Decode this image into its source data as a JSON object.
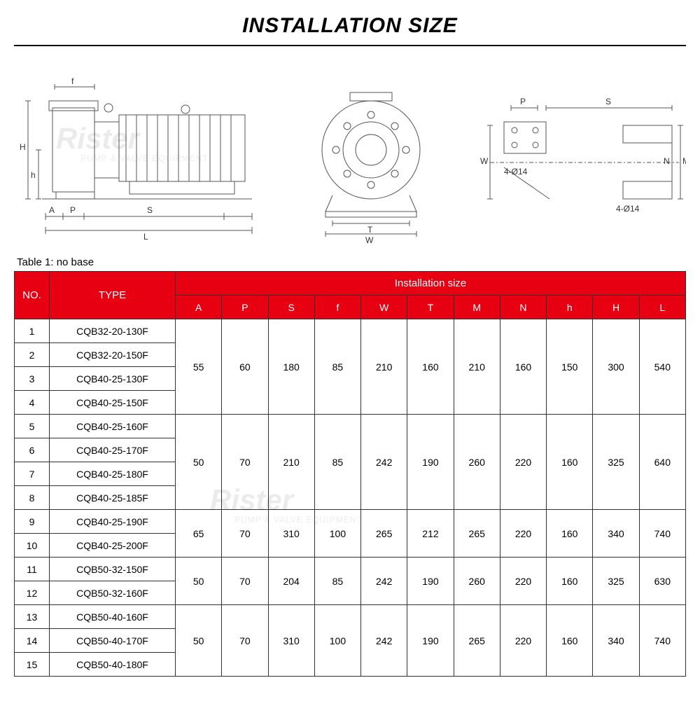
{
  "title": "INSTALLATION SIZE",
  "watermark_main": "Rister",
  "watermark_sub": "PUMP & VALVE EQUIPMENT",
  "caption": "Table 1: no base",
  "header": {
    "no": "NO.",
    "type": "TYPE",
    "group": "Installation size",
    "cols": [
      "A",
      "P",
      "S",
      "f",
      "W",
      "T",
      "M",
      "N",
      "h",
      "H",
      "L"
    ]
  },
  "diagram_labels": {
    "left": [
      "f",
      "H",
      "h",
      "A",
      "P",
      "S",
      "L"
    ],
    "mid": [
      "T",
      "W"
    ],
    "right": [
      "P",
      "S",
      "W",
      "M",
      "N",
      "4-Ø14",
      "4-Ø14"
    ]
  },
  "groups": [
    {
      "rows": [
        {
          "no": "1",
          "type": "CQB32-20-130F"
        },
        {
          "no": "2",
          "type": "CQB32-20-150F"
        },
        {
          "no": "3",
          "type": "CQB40-25-130F"
        },
        {
          "no": "4",
          "type": "CQB40-25-150F"
        }
      ],
      "vals": [
        "55",
        "60",
        "180",
        "85",
        "210",
        "160",
        "210",
        "160",
        "150",
        "300",
        "540"
      ]
    },
    {
      "rows": [
        {
          "no": "5",
          "type": "CQB40-25-160F"
        },
        {
          "no": "6",
          "type": "CQB40-25-170F"
        },
        {
          "no": "7",
          "type": "CQB40-25-180F"
        },
        {
          "no": "8",
          "type": "CQB40-25-185F"
        }
      ],
      "vals": [
        "50",
        "70",
        "210",
        "85",
        "242",
        "190",
        "260",
        "220",
        "160",
        "325",
        "640"
      ]
    },
    {
      "rows": [
        {
          "no": "9",
          "type": "CQB40-25-190F"
        },
        {
          "no": "10",
          "type": "CQB40-25-200F"
        }
      ],
      "vals": [
        "65",
        "70",
        "310",
        "100",
        "265",
        "212",
        "265",
        "220",
        "160",
        "340",
        "740"
      ]
    },
    {
      "rows": [
        {
          "no": "11",
          "type": "CQB50-32-150F"
        },
        {
          "no": "12",
          "type": "CQB50-32-160F"
        }
      ],
      "vals": [
        "50",
        "70",
        "204",
        "85",
        "242",
        "190",
        "260",
        "220",
        "160",
        "325",
        "630"
      ]
    },
    {
      "rows": [
        {
          "no": "13",
          "type": "CQB50-40-160F"
        },
        {
          "no": "14",
          "type": "CQB50-40-170F"
        },
        {
          "no": "15",
          "type": "CQB50-40-180F"
        }
      ],
      "vals": [
        "50",
        "70",
        "310",
        "100",
        "242",
        "190",
        "265",
        "220",
        "160",
        "340",
        "740"
      ]
    }
  ],
  "colors": {
    "header_bg": "#e60012",
    "header_fg": "#ffffff",
    "border": "#333333",
    "diagram_stroke": "#555555"
  }
}
